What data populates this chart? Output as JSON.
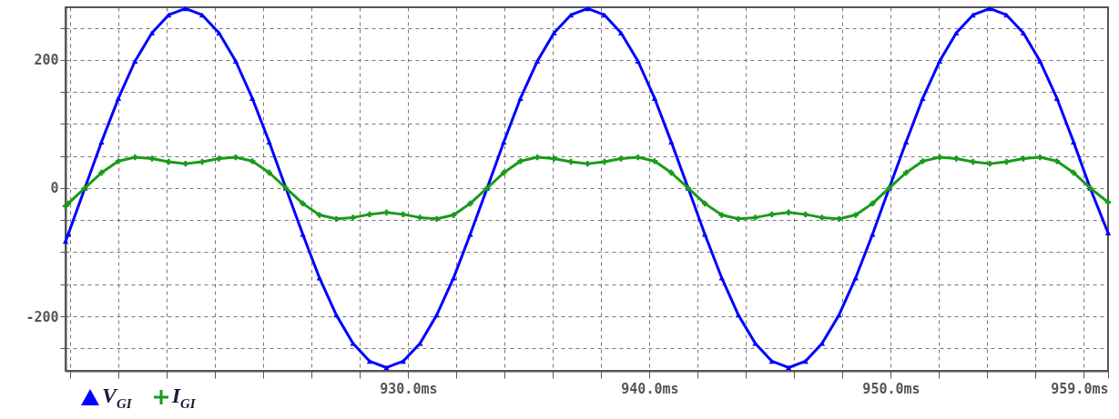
{
  "chart_data": {
    "type": "line",
    "x": [
      915.8,
      915.91,
      916.6,
      917.29,
      917.99,
      918.68,
      919.38,
      920.07,
      920.77,
      921.46,
      922.16,
      922.85,
      923.54,
      924.24,
      924.93,
      925.63,
      926.32,
      927.02,
      927.71,
      928.4,
      929.1,
      929.79,
      930.49,
      931.18,
      931.88,
      932.57,
      933.27,
      933.96,
      934.65,
      935.35,
      936.04,
      936.74,
      937.43,
      938.13,
      938.82,
      939.52,
      940.21,
      940.9,
      941.6,
      942.29,
      942.99,
      943.68,
      944.38,
      945.07,
      945.76,
      946.46,
      947.15,
      947.85,
      948.54,
      949.24,
      949.93,
      950.63,
      951.32,
      952.02,
      952.71,
      953.4,
      954.1,
      954.79,
      955.49,
      956.18,
      956.88,
      957.57,
      958.26,
      959.0
    ],
    "series": [
      {
        "name": "V$_{GI}$",
        "color": "#0000ff",
        "marker": "triangle",
        "values": [
          -83,
          -72,
          0,
          72,
          140,
          198,
          242,
          270,
          280,
          270,
          242,
          198,
          140,
          72,
          0,
          -72,
          -140,
          -198,
          -242,
          -270,
          -280,
          -270,
          -242,
          -198,
          -140,
          -72,
          0,
          72,
          140,
          198,
          242,
          270,
          280,
          270,
          242,
          198,
          140,
          72,
          0,
          -72,
          -140,
          -198,
          -242,
          -270,
          -280,
          -270,
          -242,
          -198,
          -140,
          -72,
          0,
          72,
          140,
          198,
          242,
          270,
          280,
          270,
          242,
          198,
          140,
          72,
          0,
          -70
        ]
      },
      {
        "name": "I$_{GI}$",
        "color": "#1a9a1a",
        "marker": "cross",
        "values": [
          -28,
          -24,
          0,
          24,
          42,
          48,
          46,
          41,
          38,
          41,
          46,
          48,
          42,
          24,
          0,
          -24,
          -42,
          -48,
          -46,
          -41,
          -38,
          -41,
          -46,
          -48,
          -42,
          -24,
          0,
          24,
          42,
          48,
          46,
          41,
          38,
          41,
          46,
          48,
          42,
          24,
          0,
          -24,
          -42,
          -48,
          -46,
          -41,
          -38,
          -41,
          -46,
          -48,
          -42,
          -24,
          0,
          24,
          42,
          48,
          46,
          41,
          38,
          41,
          46,
          48,
          42,
          24,
          0,
          -22
        ]
      }
    ],
    "xlim": [
      915.8,
      959.0
    ],
    "xticks": [
      {
        "value": 916,
        "label": null
      },
      {
        "value": 918,
        "label": null
      },
      {
        "value": 920,
        "label": null
      },
      {
        "value": 922,
        "label": null
      },
      {
        "value": 924,
        "label": null
      },
      {
        "value": 926,
        "label": null
      },
      {
        "value": 928,
        "label": null
      },
      {
        "value": 930,
        "label": "930.0ms"
      },
      {
        "value": 932,
        "label": null
      },
      {
        "value": 934,
        "label": null
      },
      {
        "value": 936,
        "label": null
      },
      {
        "value": 938,
        "label": null
      },
      {
        "value": 940,
        "label": "940.0ms"
      },
      {
        "value": 942,
        "label": null
      },
      {
        "value": 944,
        "label": null
      },
      {
        "value": 946,
        "label": null
      },
      {
        "value": 948,
        "label": null
      },
      {
        "value": 950,
        "label": "950.0ms"
      },
      {
        "value": 952,
        "label": null
      },
      {
        "value": 954,
        "label": null
      },
      {
        "value": 956,
        "label": null
      },
      {
        "value": 958,
        "label": null
      },
      {
        "value": 959,
        "label": "959.0ms"
      }
    ],
    "ylim": [
      -285,
      282
    ],
    "yticks": [
      {
        "value": -250,
        "label": null
      },
      -200,
      {
        "value": -150,
        "label": null
      },
      {
        "value": -100,
        "label": null
      },
      {
        "value": -50,
        "label": null
      },
      0,
      {
        "value": 50,
        "label": null
      },
      {
        "value": 100,
        "label": null
      },
      {
        "value": 150,
        "label": null
      },
      200,
      {
        "value": 250,
        "label": null
      }
    ],
    "grid": true,
    "legend": "bottom left"
  }
}
